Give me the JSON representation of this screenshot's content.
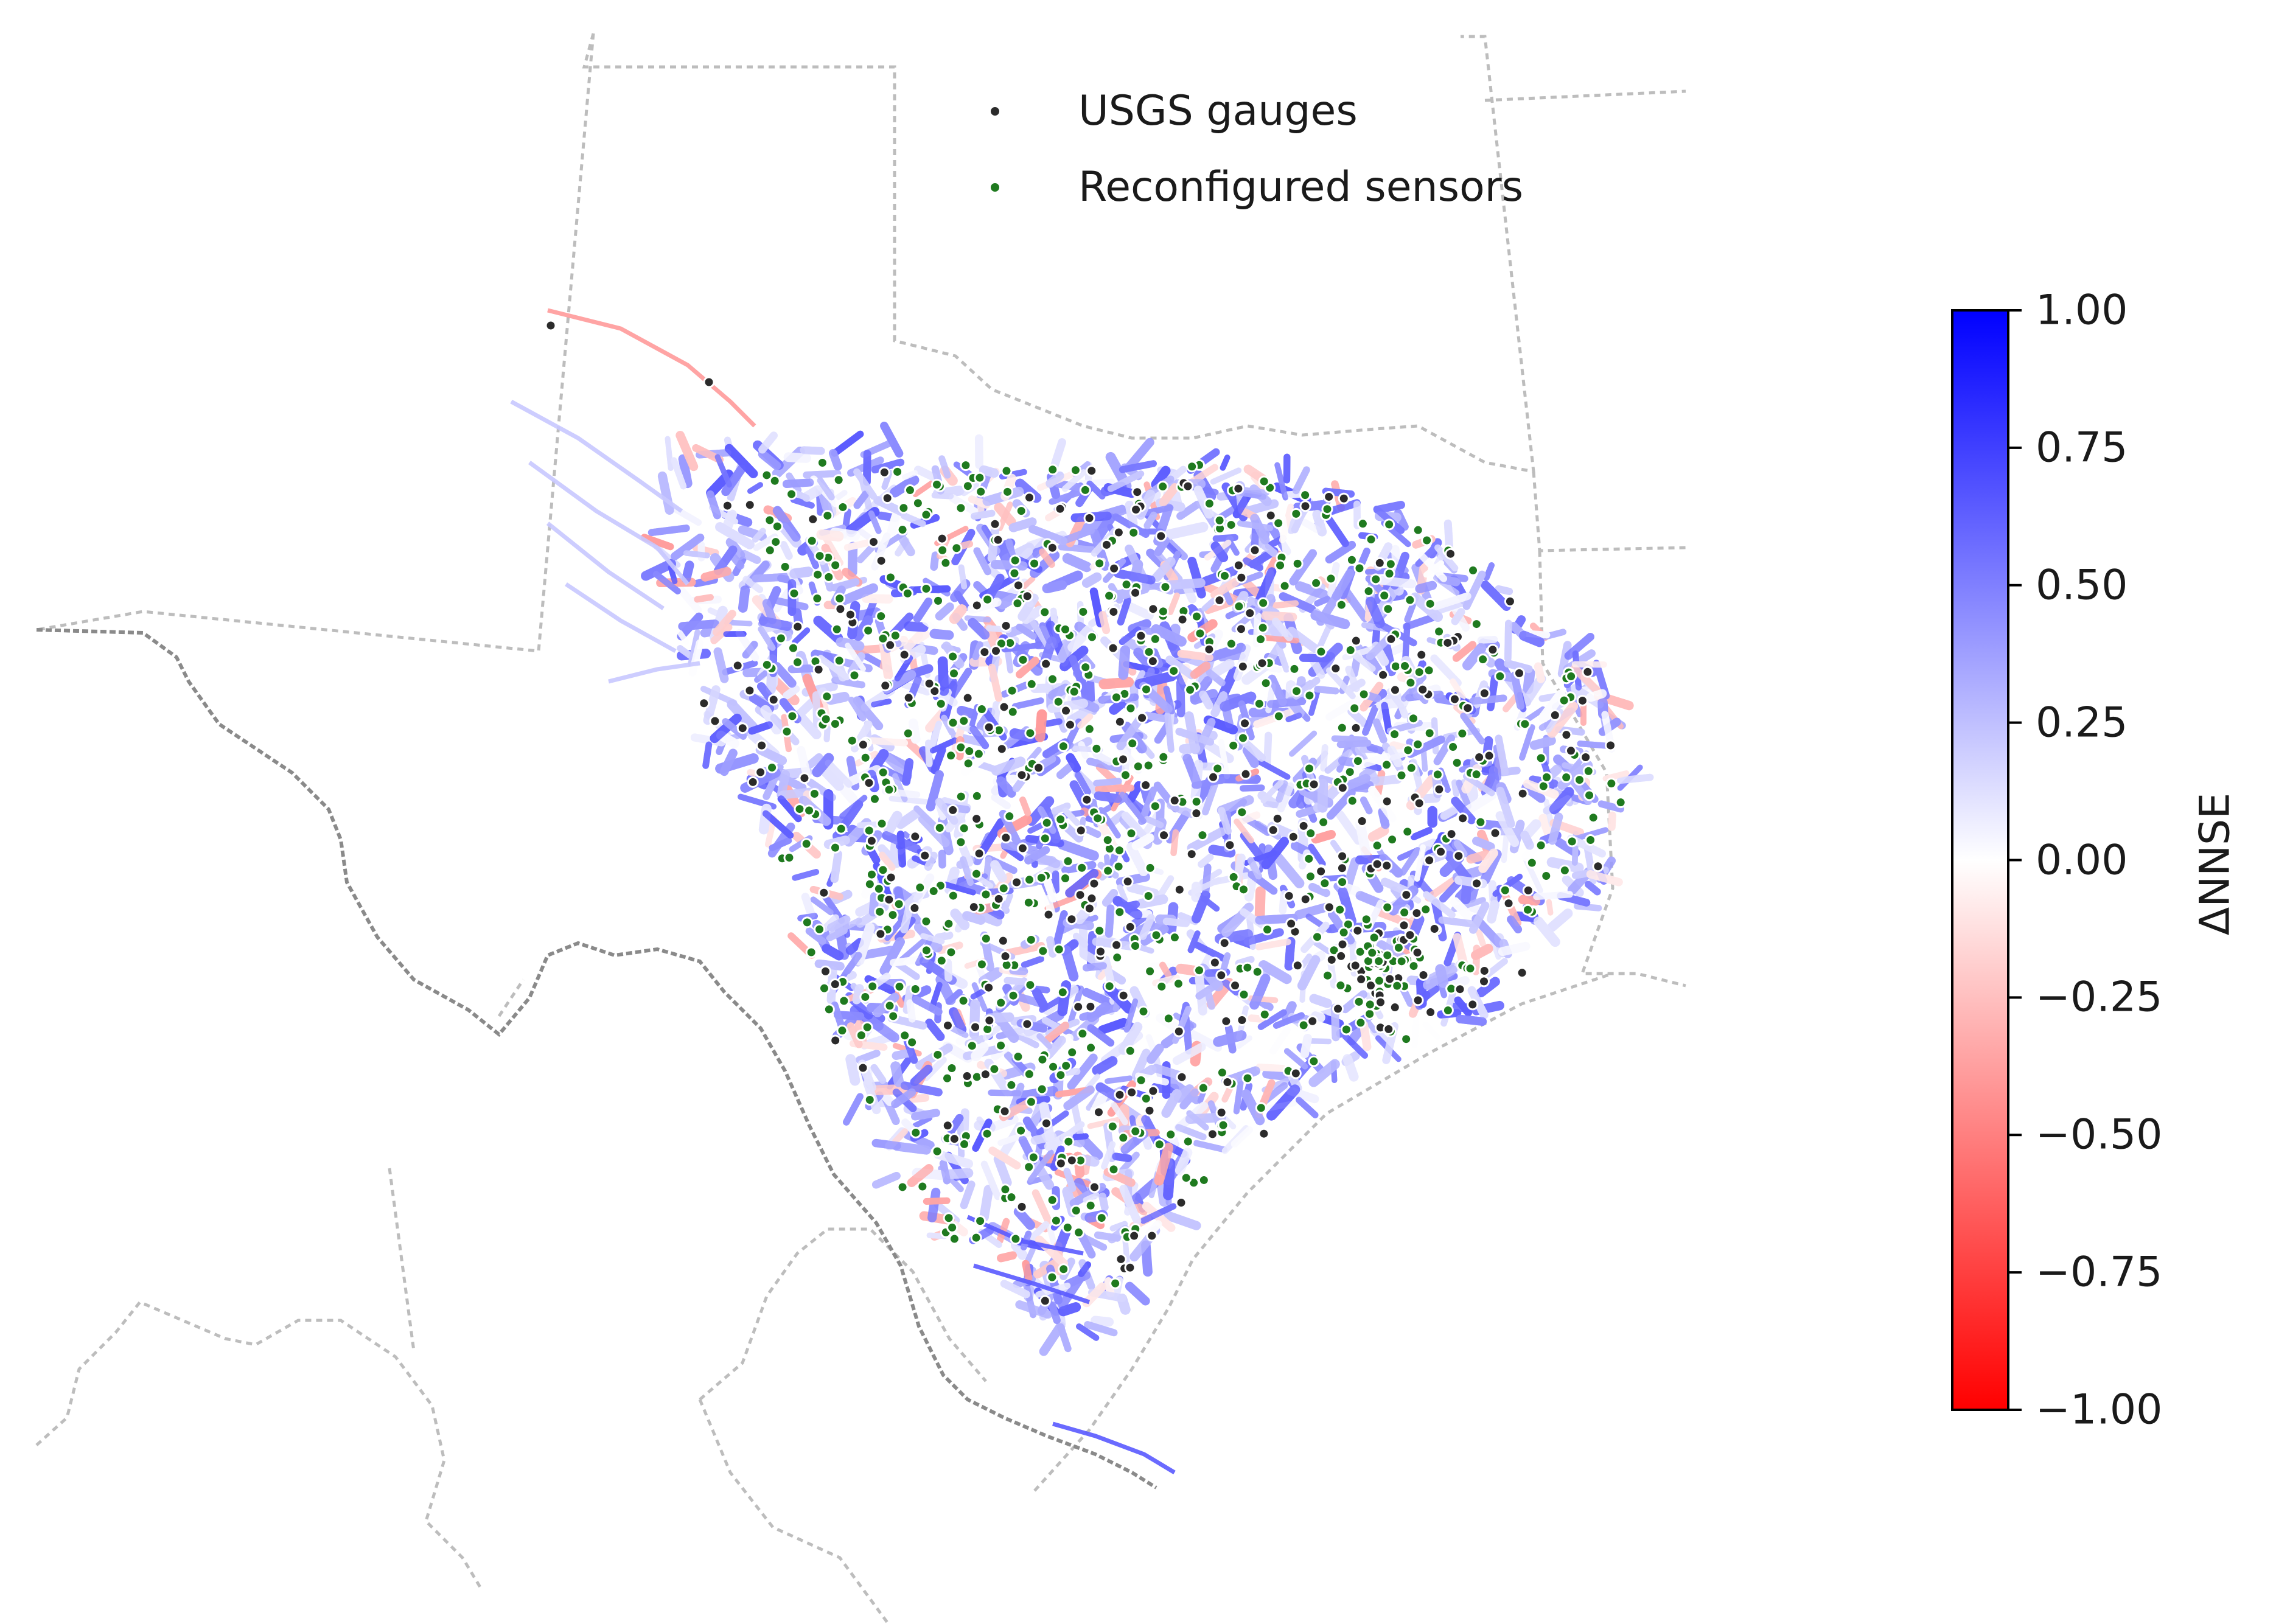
{
  "legend": {
    "items": [
      {
        "label": "USGS gauges",
        "color": "#2b2b2b"
      },
      {
        "label": "Reconfigured sensors",
        "color": "#1f7a1f"
      }
    ]
  },
  "colorbar": {
    "label": "ΔNNSE",
    "min": -1.0,
    "max": 1.0,
    "ticks": [
      "1.00",
      "0.75",
      "0.50",
      "0.25",
      "0.00",
      "−0.25",
      "−0.50",
      "−0.75",
      "−1.00"
    ],
    "tick_values": [
      1.0,
      0.75,
      0.5,
      0.25,
      0.0,
      -0.25,
      -0.5,
      -0.75,
      -1.0
    ],
    "colors": {
      "high": "#0000ff",
      "mid": "#ffffff",
      "low": "#ff0000"
    }
  },
  "map": {
    "background": "#ffffff",
    "boundary_color": "#bdbdbd",
    "river_color_low": "#ff0000",
    "river_color_high": "#0000ff",
    "point_layers": [
      "USGS gauges",
      "Reconfigured sensors"
    ]
  }
}
